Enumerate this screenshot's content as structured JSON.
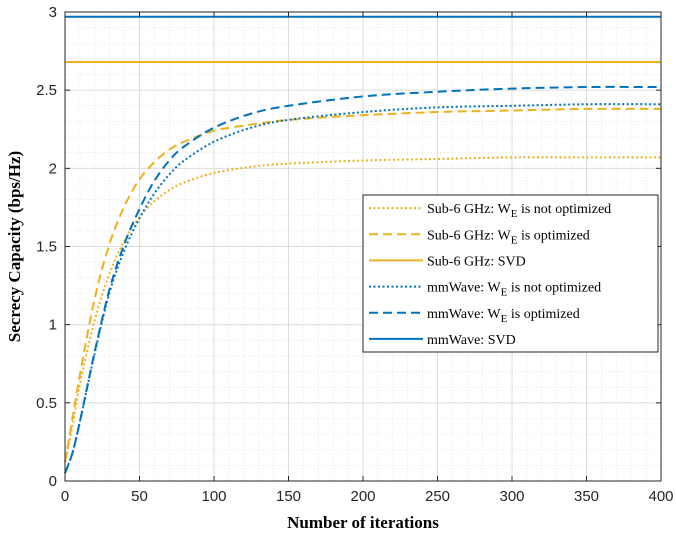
{
  "chart_data": {
    "type": "line",
    "xlabel": "Number of iterations",
    "ylabel": "Secrecy Capacity (bps/Hz)",
    "xlim": [
      0,
      400
    ],
    "ylim": [
      0,
      3
    ],
    "xticks": [
      "0",
      "50",
      "100",
      "150",
      "200",
      "250",
      "300",
      "350",
      "400"
    ],
    "yticks": [
      "0",
      "0.5",
      "1",
      "1.5",
      "2",
      "2.5",
      "3"
    ],
    "grid": true,
    "minor_grid": true,
    "legend_position": "right",
    "x": [
      0,
      5,
      10,
      20,
      30,
      40,
      50,
      60,
      70,
      80,
      100,
      125,
      150,
      200,
      250,
      300,
      350,
      400
    ],
    "series": [
      {
        "name": "Sub-6 GHz: W_E is not optimized",
        "legend_main": "Sub-6 GHz: W",
        "legend_sub": "E",
        "legend_rest": " is not optimized",
        "color": "#EDB120",
        "style": "dotted",
        "values": [
          0.12,
          0.35,
          0.62,
          1.03,
          1.33,
          1.54,
          1.69,
          1.79,
          1.86,
          1.91,
          1.97,
          2.01,
          2.03,
          2.05,
          2.06,
          2.07,
          2.07,
          2.07
        ]
      },
      {
        "name": "Sub-6 GHz: W_E is optimized",
        "legend_main": "Sub-6 GHz: W",
        "legend_sub": "E",
        "legend_rest": " is optimized",
        "color": "#EDB120",
        "style": "dashed",
        "values": [
          0.12,
          0.4,
          0.68,
          1.17,
          1.52,
          1.76,
          1.93,
          2.04,
          2.12,
          2.17,
          2.24,
          2.28,
          2.31,
          2.34,
          2.36,
          2.37,
          2.38,
          2.38
        ]
      },
      {
        "name": "Sub-6 GHz: SVD",
        "legend_main": "Sub-6 GHz: SVD",
        "legend_sub": "",
        "legend_rest": "",
        "color": "#EDB120",
        "style": "solid",
        "values": [
          2.68,
          2.68,
          2.68,
          2.68,
          2.68,
          2.68,
          2.68,
          2.68,
          2.68,
          2.68,
          2.68,
          2.68,
          2.68,
          2.68,
          2.68,
          2.68,
          2.68,
          2.68
        ]
      },
      {
        "name": "mmWave: W_E is not optimized",
        "legend_main": "mmWave: W",
        "legend_sub": "E",
        "legend_rest": " is not optimized",
        "color": "#0072BD",
        "style": "dotted",
        "values": [
          0.05,
          0.18,
          0.38,
          0.82,
          1.21,
          1.48,
          1.68,
          1.84,
          1.96,
          2.05,
          2.17,
          2.26,
          2.31,
          2.36,
          2.39,
          2.4,
          2.41,
          2.41
        ]
      },
      {
        "name": "mmWave: W_E is optimized",
        "legend_main": "mmWave: W",
        "legend_sub": "E",
        "legend_rest": " is optimized",
        "color": "#0072BD",
        "style": "dashed",
        "values": [
          0.05,
          0.18,
          0.38,
          0.83,
          1.23,
          1.52,
          1.74,
          1.92,
          2.05,
          2.14,
          2.26,
          2.35,
          2.4,
          2.46,
          2.49,
          2.51,
          2.52,
          2.52
        ]
      },
      {
        "name": "mmWave: SVD",
        "legend_main": "mmWave: SVD",
        "legend_sub": "",
        "legend_rest": "",
        "color": "#0072BD",
        "style": "solid",
        "values": [
          2.97,
          2.97,
          2.97,
          2.97,
          2.97,
          2.97,
          2.97,
          2.97,
          2.97,
          2.97,
          2.97,
          2.97,
          2.97,
          2.97,
          2.97,
          2.97,
          2.97,
          2.97
        ]
      }
    ]
  }
}
